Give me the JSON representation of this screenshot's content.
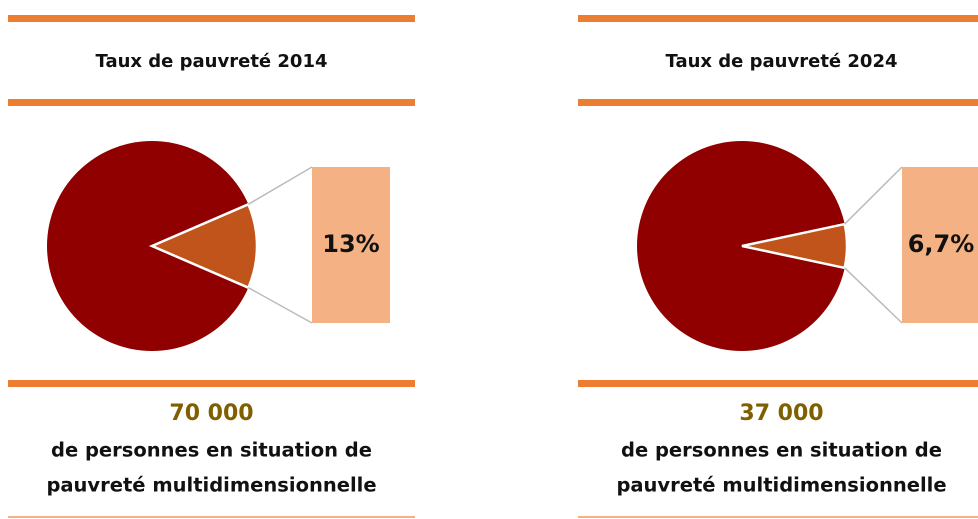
{
  "chart_data": [
    {
      "type": "pie",
      "title": "Taux de pauvreté 2014",
      "values": [
        13
      ],
      "value_labels": [
        "13%"
      ],
      "color": "#c0541a",
      "base_color": "#900000",
      "box_color": "#f4b183",
      "figure": "70 000",
      "caption": [
        "de personnes en situation de",
        "pauvreté multidimensionnelle"
      ]
    },
    {
      "type": "pie",
      "title": "Taux de pauvreté 2024",
      "values": [
        6.7
      ],
      "value_labels": [
        "6,7%"
      ],
      "color": "#c0541a",
      "base_color": "#900000",
      "box_color": "#f4b183",
      "figure": "37 000",
      "caption": [
        "de personnes en situation de",
        "pauvreté multidimensionnelle"
      ]
    }
  ]
}
